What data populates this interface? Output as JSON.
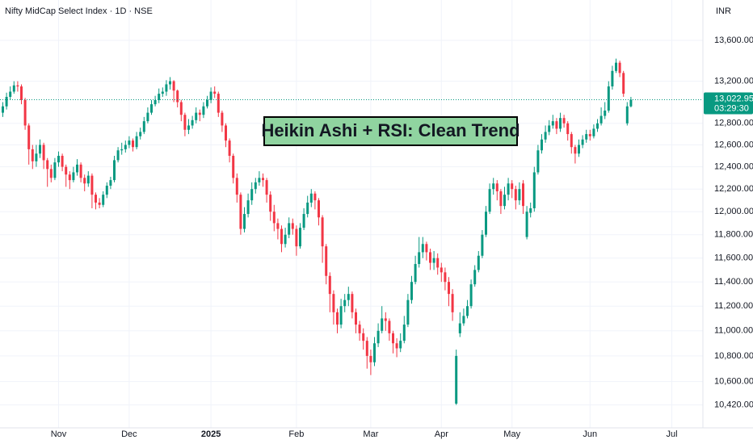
{
  "chart_data": {
    "type": "candlestick",
    "title": "Nifty MidCap Select Index · 1D · NSE",
    "currency": "INR",
    "annotation": "Heikin Ashi + RSI: Clean Trend",
    "last_price": {
      "value": 13022.95,
      "label": "13,022.95"
    },
    "countdown": "03:29:30",
    "log_scale": true,
    "grid": true,
    "up_color": "#089981",
    "down_color": "#f23645",
    "ylim": [
      10247,
      14007
    ],
    "yticks": [
      {
        "value": 13600,
        "label": "13,600.00"
      },
      {
        "value": 13200,
        "label": "13,200.00"
      },
      {
        "value": 12800,
        "label": "12,800.00"
      },
      {
        "value": 12600,
        "label": "12,600.00"
      },
      {
        "value": 12400,
        "label": "12,400.00"
      },
      {
        "value": 12200,
        "label": "12,200.00"
      },
      {
        "value": 12000,
        "label": "12,000.00"
      },
      {
        "value": 11800,
        "label": "11,800.00"
      },
      {
        "value": 11600,
        "label": "11,600.00"
      },
      {
        "value": 11400,
        "label": "11,400.00"
      },
      {
        "value": 11200,
        "label": "11,200.00"
      },
      {
        "value": 11000,
        "label": "11,000.00"
      },
      {
        "value": 10800,
        "label": "10,800.00"
      },
      {
        "value": 10600,
        "label": "10,600.00"
      },
      {
        "value": 10420,
        "label": "10,420.00"
      }
    ],
    "categories": [
      null,
      null,
      null,
      null,
      null,
      null,
      null,
      null,
      null,
      null,
      null,
      null,
      null,
      null,
      null,
      "Nov",
      null,
      null,
      null,
      null,
      null,
      null,
      null,
      null,
      null,
      null,
      null,
      null,
      null,
      null,
      null,
      null,
      null,
      null,
      "Dec",
      null,
      null,
      null,
      null,
      null,
      null,
      null,
      null,
      null,
      null,
      null,
      null,
      null,
      null,
      null,
      null,
      null,
      null,
      null,
      null,
      null,
      "2025",
      null,
      null,
      null,
      null,
      null,
      null,
      null,
      null,
      null,
      null,
      null,
      null,
      null,
      null,
      null,
      null,
      null,
      null,
      null,
      null,
      null,
      null,
      "Feb",
      null,
      null,
      null,
      null,
      null,
      null,
      null,
      null,
      null,
      null,
      null,
      null,
      null,
      null,
      null,
      null,
      null,
      null,
      null,
      "Mar",
      null,
      null,
      null,
      null,
      null,
      null,
      null,
      null,
      null,
      null,
      null,
      null,
      null,
      null,
      null,
      null,
      null,
      null,
      "Apr",
      null,
      null,
      null,
      null,
      null,
      null,
      null,
      null,
      null,
      null,
      null,
      null,
      null,
      null,
      null,
      null,
      null,
      null,
      "May",
      null,
      null,
      null,
      null,
      null,
      null,
      null,
      null,
      null,
      null,
      null,
      null,
      null,
      null,
      null,
      null,
      null,
      null,
      null,
      null,
      "Jun",
      null,
      null,
      null,
      null,
      null,
      null,
      null,
      null,
      null,
      null,
      null,
      null,
      null,
      null,
      null,
      null,
      null,
      null,
      null,
      null,
      null,
      "Jul",
      null,
      null,
      null,
      null,
      null,
      null,
      null
    ],
    "open": [
      12900,
      12960,
      13050,
      13100,
      13160,
      13150,
      13020,
      12780,
      12560,
      12450,
      12520,
      12600,
      12460,
      12380,
      12300,
      12440,
      12500,
      12400,
      12330,
      12280,
      12350,
      12420,
      12300,
      12250,
      12320,
      12150,
      12080,
      12060,
      12150,
      12230,
      12280,
      12460,
      12550,
      12560,
      12600,
      12640,
      12580,
      12680,
      12720,
      12820,
      12900,
      12980,
      13020,
      13080,
      13100,
      13170,
      13200,
      13110,
      13000,
      12880,
      12740,
      12780,
      12830,
      12900,
      12880,
      12960,
      13020,
      13100,
      13080,
      12900,
      12780,
      12640,
      12500,
      12300,
      12150,
      11850,
      11980,
      12100,
      12200,
      12260,
      12300,
      12280,
      12150,
      12000,
      11900,
      11850,
      11720,
      11800,
      11900,
      11850,
      11700,
      11860,
      11980,
      12080,
      12160,
      12100,
      11950,
      11700,
      11450,
      11300,
      11150,
      11050,
      11200,
      11250,
      11300,
      11150,
      11050,
      10980,
      10920,
      10800,
      10750,
      10900,
      11000,
      11100,
      11080,
      10980,
      10900,
      10860,
      10920,
      11050,
      11250,
      11400,
      11550,
      11650,
      11720,
      11650,
      11560,
      11600,
      11520,
      11480,
      11400,
      11300,
      10430,
      10980,
      11060,
      11120,
      11200,
      11380,
      11500,
      11620,
      11800,
      12000,
      12200,
      12250,
      12180,
      12050,
      12150,
      12250,
      12200,
      12100,
      12250,
      11780,
      11990,
      12030,
      12350,
      12550,
      12650,
      12720,
      12780,
      12820,
      12750,
      12850,
      12800,
      12700,
      12580,
      12520,
      12600,
      12650,
      12700,
      12680,
      12750,
      12800,
      12870,
      12920,
      13150,
      13300,
      13380,
      13280,
      12800,
      12960,
      null,
      null,
      null,
      null,
      null,
      null,
      null,
      null,
      null,
      null,
      null,
      null,
      null,
      null,
      null,
      null,
      null,
      null
    ],
    "high": [
      13000,
      13090,
      13150,
      13200,
      13200,
      13170,
      13040,
      12800,
      12600,
      12600,
      12650,
      12620,
      12480,
      12420,
      12480,
      12540,
      12520,
      12420,
      12360,
      12400,
      12470,
      12440,
      12330,
      12360,
      12340,
      12170,
      12120,
      12180,
      12260,
      12310,
      12500,
      12580,
      12620,
      12640,
      12680,
      12660,
      12720,
      12760,
      12860,
      12950,
      13020,
      13060,
      13130,
      13140,
      13210,
      13240,
      13210,
      13120,
      13020,
      12900,
      12840,
      12870,
      12950,
      12930,
      13000,
      13060,
      13140,
      13150,
      13100,
      12920,
      12800,
      12660,
      12520,
      12340,
      12170,
      12040,
      12160,
      12260,
      12300,
      12360,
      12340,
      12300,
      12180,
      12060,
      11940,
      11880,
      11860,
      11950,
      11940,
      11880,
      11900,
      12030,
      12140,
      12200,
      12180,
      12120,
      11970,
      11720,
      11480,
      11330,
      11180,
      11260,
      11300,
      11360,
      11320,
      11180,
      11080,
      11020,
      10950,
      10850,
      10950,
      11060,
      11200,
      11150,
      11100,
      11000,
      10940,
      10980,
      11120,
      11300,
      11450,
      11620,
      11780,
      11780,
      11740,
      11680,
      11660,
      11640,
      11560,
      11520,
      11440,
      11340,
      10850,
      11150,
      11180,
      11250,
      11420,
      11540,
      11660,
      11840,
      12050,
      12250,
      12300,
      12280,
      12200,
      12220,
      12300,
      12280,
      12230,
      12260,
      12280,
      12050,
      12080,
      12400,
      12600,
      12700,
      12780,
      12830,
      12880,
      12850,
      12900,
      12880,
      12820,
      12720,
      12600,
      12650,
      12690,
      12740,
      12740,
      12790,
      12840,
      12950,
      13000,
      13200,
      13350,
      13420,
      13400,
      13300,
      13000,
      13050,
      null,
      null,
      null,
      null,
      null,
      null,
      null,
      null,
      null,
      null,
      null,
      null,
      null,
      null,
      null,
      null,
      null,
      null
    ],
    "low": [
      12860,
      12930,
      13020,
      13080,
      13100,
      12980,
      12740,
      12420,
      12380,
      12400,
      12480,
      12380,
      12220,
      12260,
      12280,
      12400,
      12360,
      12220,
      12200,
      12260,
      12320,
      12260,
      12180,
      12220,
      12030,
      12020,
      12030,
      12040,
      12120,
      12200,
      12260,
      12440,
      12510,
      12530,
      12570,
      12540,
      12560,
      12650,
      12700,
      12800,
      12880,
      12960,
      12990,
      13050,
      13060,
      13120,
      13000,
      12950,
      12820,
      12680,
      12700,
      12750,
      12800,
      12820,
      12850,
      12940,
      12990,
      13040,
      12860,
      12720,
      12580,
      12440,
      12250,
      12080,
      11800,
      11820,
      11950,
      12060,
      12160,
      12230,
      12220,
      12080,
      11920,
      11830,
      11760,
      11650,
      11690,
      11770,
      11800,
      11620,
      11680,
      11840,
      11950,
      12040,
      12020,
      11880,
      11560,
      11380,
      11150,
      11050,
      10980,
      11020,
      11150,
      11200,
      11100,
      10980,
      10920,
      10850,
      10700,
      10650,
      10720,
      10870,
      10980,
      11000,
      10920,
      10820,
      10790,
      10830,
      10900,
      11030,
      11220,
      11380,
      11520,
      11600,
      11580,
      11500,
      11500,
      11460,
      11400,
      11330,
      11200,
      11080,
      10420,
      10950,
      11040,
      11100,
      11180,
      11360,
      11480,
      11600,
      11780,
      11980,
      12150,
      12100,
      11980,
      12020,
      12100,
      12120,
      12020,
      12060,
      11980,
      11760,
      11950,
      12000,
      12330,
      12520,
      12620,
      12690,
      12750,
      12700,
      12720,
      12760,
      12640,
      12520,
      12430,
      12490,
      12570,
      12620,
      12640,
      12660,
      12720,
      12780,
      12840,
      12900,
      13120,
      13280,
      13240,
      13050,
      12780,
      12950,
      null,
      null,
      null,
      null,
      null,
      null,
      null,
      null,
      null,
      null,
      null,
      null,
      null,
      null,
      null,
      null,
      null,
      null
    ],
    "close": [
      12960,
      13050,
      13100,
      13160,
      13150,
      13020,
      12780,
      12560,
      12450,
      12520,
      12600,
      12460,
      12380,
      12300,
      12440,
      12500,
      12400,
      12330,
      12280,
      12350,
      12420,
      12300,
      12250,
      12320,
      12150,
      12080,
      12060,
      12150,
      12230,
      12280,
      12460,
      12550,
      12560,
      12600,
      12640,
      12580,
      12680,
      12720,
      12820,
      12900,
      12980,
      13020,
      13080,
      13100,
      13170,
      13200,
      13110,
      13000,
      12880,
      12740,
      12780,
      12830,
      12900,
      12880,
      12960,
      13020,
      13100,
      13080,
      12900,
      12780,
      12640,
      12500,
      12300,
      12150,
      11850,
      11980,
      12100,
      12200,
      12260,
      12300,
      12280,
      12150,
      12000,
      11900,
      11850,
      11720,
      11800,
      11900,
      11850,
      11700,
      11860,
      11980,
      12080,
      12160,
      12100,
      11950,
      11700,
      11450,
      11300,
      11150,
      11050,
      11200,
      11250,
      11300,
      11150,
      11050,
      10980,
      10920,
      10800,
      10750,
      10900,
      11000,
      11100,
      11080,
      10980,
      10900,
      10860,
      10920,
      11050,
      11250,
      11400,
      11550,
      11650,
      11720,
      11650,
      11560,
      11600,
      11520,
      11480,
      11400,
      11300,
      11150,
      10800,
      11060,
      11120,
      11200,
      11380,
      11500,
      11620,
      11800,
      12000,
      12200,
      12250,
      12180,
      12050,
      12150,
      12250,
      12200,
      12100,
      12200,
      12050,
      12000,
      12030,
      12350,
      12550,
      12650,
      12720,
      12780,
      12820,
      12750,
      12850,
      12800,
      12700,
      12580,
      12520,
      12600,
      12650,
      12700,
      12680,
      12750,
      12800,
      12870,
      12920,
      13150,
      13300,
      13380,
      13280,
      13080,
      12960,
      13022.95,
      null,
      null,
      null,
      null,
      null,
      null,
      null,
      null,
      null,
      null,
      null,
      null,
      null,
      null,
      null,
      null,
      null,
      null
    ]
  }
}
